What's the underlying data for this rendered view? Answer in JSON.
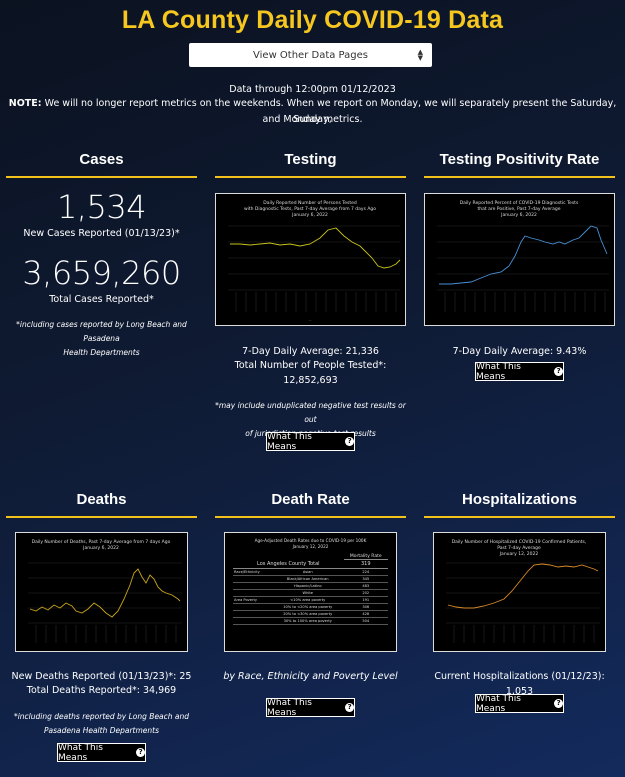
{
  "page": {
    "title": "LA County Daily COVID-19 Data",
    "select_label": "View Other Data Pages",
    "data_through": "Data through 12:00pm 01/12/2023",
    "note_label": "NOTE:",
    "note_text": "We will no longer report metrics on the weekends. When we report on Monday, we will separately present the Saturday, Sunday,",
    "note_text2": "and Monday metrics."
  },
  "cases": {
    "heading": "Cases",
    "new_value": "1,534",
    "new_label": "New Cases Reported (01/13/23)*",
    "total_value": "3,659,260",
    "total_label": "Total Cases Reported*",
    "footnote1": "*including cases reported by Long Beach and Pasadena",
    "footnote2": "Health Departments"
  },
  "testing": {
    "heading": "Testing",
    "chart_title1": "Daily Reported Number of Persons Tested",
    "chart_title2": "with Diagnostic Tests, Past 7-day Average from 7 days Ago",
    "chart_title3": "January 6, 2022",
    "avg": "7-Day Daily Average: 21,336",
    "total_label": "Total Number of People Tested*:",
    "total_value": "12,852,693",
    "footnote1": "*may include unduplicated negative test results or out",
    "footnote2": "of jurisdiction negative test results",
    "button": "What This Means"
  },
  "positivity": {
    "heading": "Testing Positivity Rate",
    "chart_title1": "Daily Reported Percent of COVID-19 Diagnostic Tests",
    "chart_title2": "that are Positive, Past 7-day Average",
    "chart_title3": "January 6, 2022",
    "avg": "7-Day Daily Average: 9.43%",
    "button": "What This Means"
  },
  "deaths": {
    "heading": "Deaths",
    "chart_title1": "Daily Number of Deaths, Past 7-day Average from 7 days Ago",
    "chart_title2": "January 6, 2022",
    "new_label": "New Deaths Reported (01/13/23)*: 25",
    "total_label": "Total Deaths Reported*: 34,969",
    "footnote1": "*including deaths reported by Long Beach and",
    "footnote2": "Pasadena Health Departments",
    "button": "What This Means"
  },
  "death_rate": {
    "heading": "Death Rate",
    "table_title1": "Age-Adjusted Death Rates due to COVID-19 per 100K",
    "table_title2": "January 12, 2022",
    "col_header": "Mortality Rate",
    "county_label": "Los Angeles County Total",
    "county_value": "319",
    "rows": [
      {
        "group": "Race/Ethnicity",
        "sub": "Asian",
        "val": "224"
      },
      {
        "group": "",
        "sub": "Black/African American",
        "val": "345"
      },
      {
        "group": "",
        "sub": "Hispanic/Latino",
        "val": "483"
      },
      {
        "group": "",
        "sub": "White",
        "val": "202"
      },
      {
        "group": "Area Poverty",
        "sub": "<10% area poverty",
        "val": "191"
      },
      {
        "group": "",
        "sub": "10% to <20% area poverty",
        "val": "306"
      },
      {
        "group": "",
        "sub": "20% to <30% area poverty",
        "val": "428"
      },
      {
        "group": "",
        "sub": "30% to 100% area poverty",
        "val": "504"
      }
    ],
    "caption": "by Race, Ethnicity and Poverty Level",
    "button": "What This Means"
  },
  "hospital": {
    "heading": "Hospitalizations",
    "chart_title1": "Daily Number of Hospitalized COVID-19 Confirmed Patients,",
    "chart_title2": "Past 7-day Average",
    "chart_title3": "January 12, 2022",
    "current_label": "Current Hospitalizations (01/12/23): 1,053",
    "button": "What This Means"
  },
  "colors": {
    "accent": "#f6c81f",
    "testing_line": "#c8c41c",
    "positivity_line": "#4a90d9",
    "deaths_line": "#c9a51a",
    "hospital_line": "#d9892a"
  }
}
